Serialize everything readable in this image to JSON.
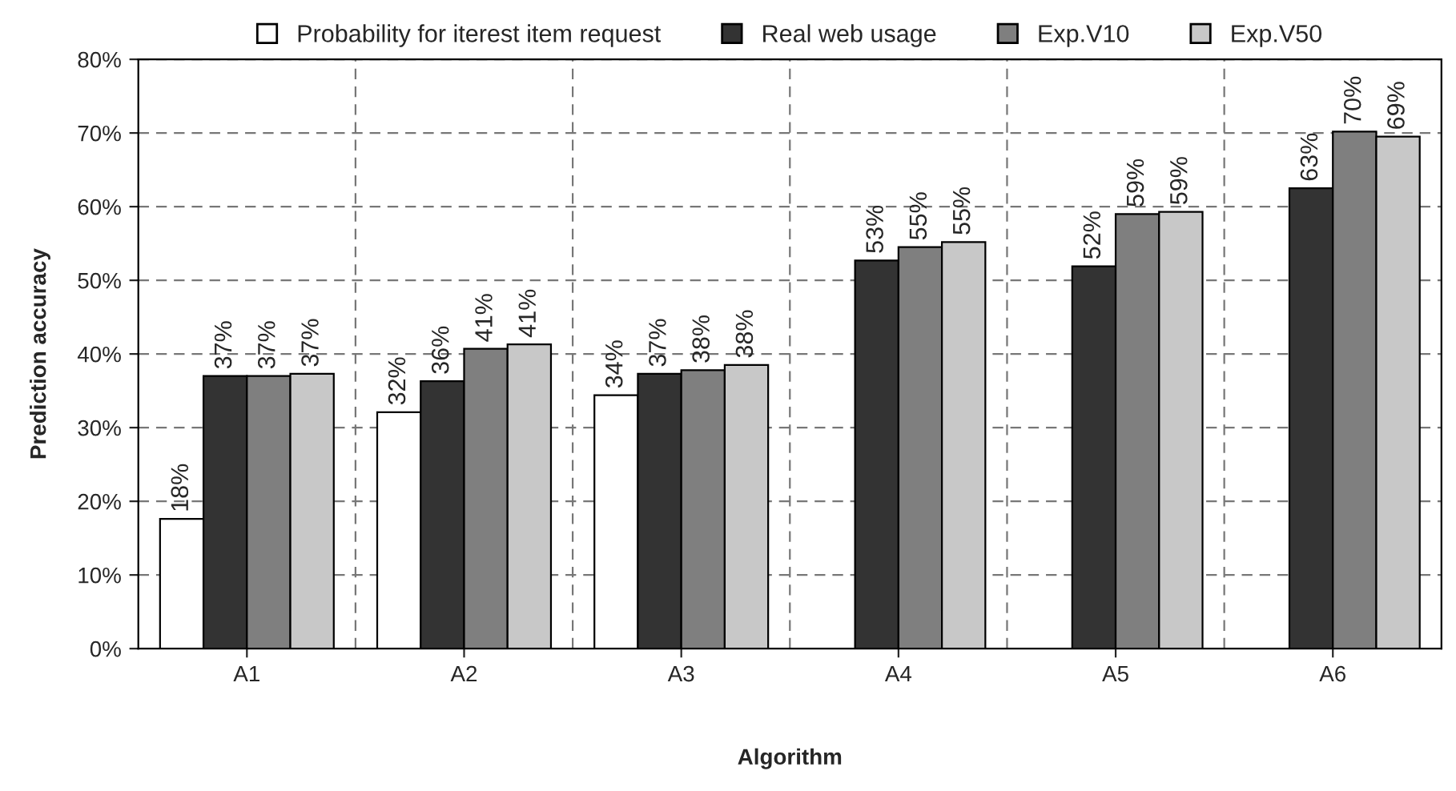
{
  "chart_data": {
    "type": "bar",
    "xlabel": "Algorithm",
    "ylabel": "Prediction accuracy",
    "categories": [
      "A1",
      "A2",
      "A3",
      "A4",
      "A5",
      "A6"
    ],
    "series": [
      {
        "name": "Probability for iterest item request",
        "color": "#ffffff",
        "values": [
          17.6,
          32.1,
          34.4,
          null,
          null,
          null
        ],
        "value_labels": [
          "18%",
          "32%",
          "34%",
          null,
          null,
          null
        ]
      },
      {
        "name": "Real web usage",
        "color": "#333333",
        "values": [
          37.0,
          36.3,
          37.3,
          52.7,
          51.9,
          62.5
        ],
        "value_labels": [
          "37%",
          "36%",
          "37%",
          "53%",
          "52%",
          "63%"
        ]
      },
      {
        "name": "Exp.V10",
        "color": "#7f7f7f",
        "values": [
          37.0,
          40.7,
          37.8,
          54.5,
          59.0,
          70.2
        ],
        "value_labels": [
          "37%",
          "41%",
          "38%",
          "55%",
          "59%",
          "70%"
        ]
      },
      {
        "name": "Exp.V50",
        "color": "#c8c8c8",
        "values": [
          37.3,
          41.3,
          38.5,
          55.2,
          59.3,
          69.5
        ],
        "value_labels": [
          "37%",
          "41%",
          "38%",
          "55%",
          "59%",
          "69%"
        ]
      }
    ],
    "ylim": [
      0,
      80
    ],
    "yticks": [
      {
        "value": 0,
        "label": "0%"
      },
      {
        "value": 10,
        "label": "10%"
      },
      {
        "value": 20,
        "label": "20%"
      },
      {
        "value": 30,
        "label": "30%"
      },
      {
        "value": 40,
        "label": "40%"
      },
      {
        "value": 50,
        "label": "50%"
      },
      {
        "value": 60,
        "label": "60%"
      },
      {
        "value": 70,
        "label": "70%"
      },
      {
        "value": 80,
        "label": "80%"
      }
    ],
    "grid": true,
    "legend": "top"
  }
}
